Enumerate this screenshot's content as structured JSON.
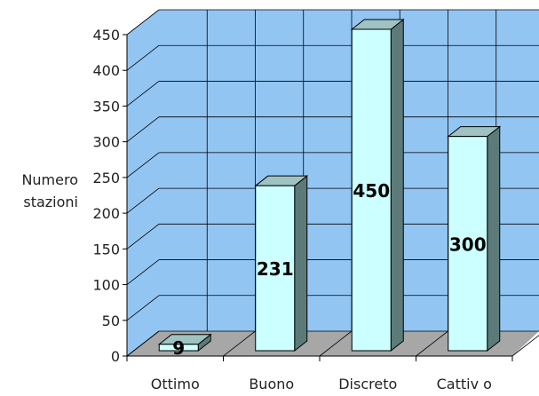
{
  "chart_data": {
    "type": "bar",
    "categories": [
      "Ottimo",
      "Buono",
      "Discreto",
      "Cattivo"
    ],
    "category_labels": [
      "Ottimo",
      "Buono",
      "Discreto",
      "Cattiv o"
    ],
    "values": [
      9,
      231,
      450,
      300
    ],
    "data_labels": [
      "9",
      "231",
      "450",
      "300"
    ],
    "ylabel_lines": [
      "Numero",
      "stazioni"
    ],
    "ylim": [
      0,
      450
    ],
    "yticks": [
      0,
      50,
      100,
      150,
      200,
      250,
      300,
      350,
      400,
      450
    ],
    "grid": true,
    "style": "3d-column",
    "colors": {
      "wall": "#93C5F3",
      "floor": "#A7A7A7",
      "bar_front": "#CCFFFF",
      "bar_top": "#9FC2C2",
      "bar_side": "#5C7A7A",
      "grid": "#000000"
    }
  }
}
